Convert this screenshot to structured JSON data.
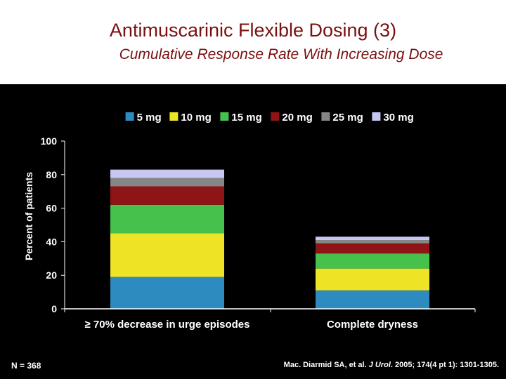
{
  "header": {
    "title": "Antimuscarinic Flexible Dosing (3)",
    "subtitle": "Cumulative Response Rate With Increasing Dose"
  },
  "chart_data": {
    "type": "bar",
    "stacked": true,
    "title": "",
    "xlabel": "",
    "ylabel": "Percent of patients",
    "ylim": [
      0,
      100
    ],
    "yticks": [
      0,
      20,
      40,
      60,
      80,
      100
    ],
    "legend_position": "top",
    "categories": [
      "≥ 70% decrease in urge episodes",
      "Complete dryness"
    ],
    "series": [
      {
        "name": "5 mg",
        "color": "#2e8bc0",
        "values": [
          19,
          11
        ]
      },
      {
        "name": "10 mg",
        "color": "#eee425",
        "values": [
          26,
          13
        ]
      },
      {
        "name": "15 mg",
        "color": "#45c14c",
        "values": [
          17,
          9
        ]
      },
      {
        "name": "20 mg",
        "color": "#8e1416",
        "values": [
          11,
          6
        ]
      },
      {
        "name": "25 mg",
        "color": "#858585",
        "values": [
          5,
          2
        ]
      },
      {
        "name": "30 mg",
        "color": "#c7c7f4",
        "values": [
          5,
          2
        ]
      }
    ]
  },
  "footer": {
    "n_label": "N = 368",
    "citation_authors": "Mac. Diarmid SA, et al. ",
    "citation_journal": "J Urol",
    "citation_rest": ". 2005; 174(4 pt 1): 1301-1305."
  }
}
